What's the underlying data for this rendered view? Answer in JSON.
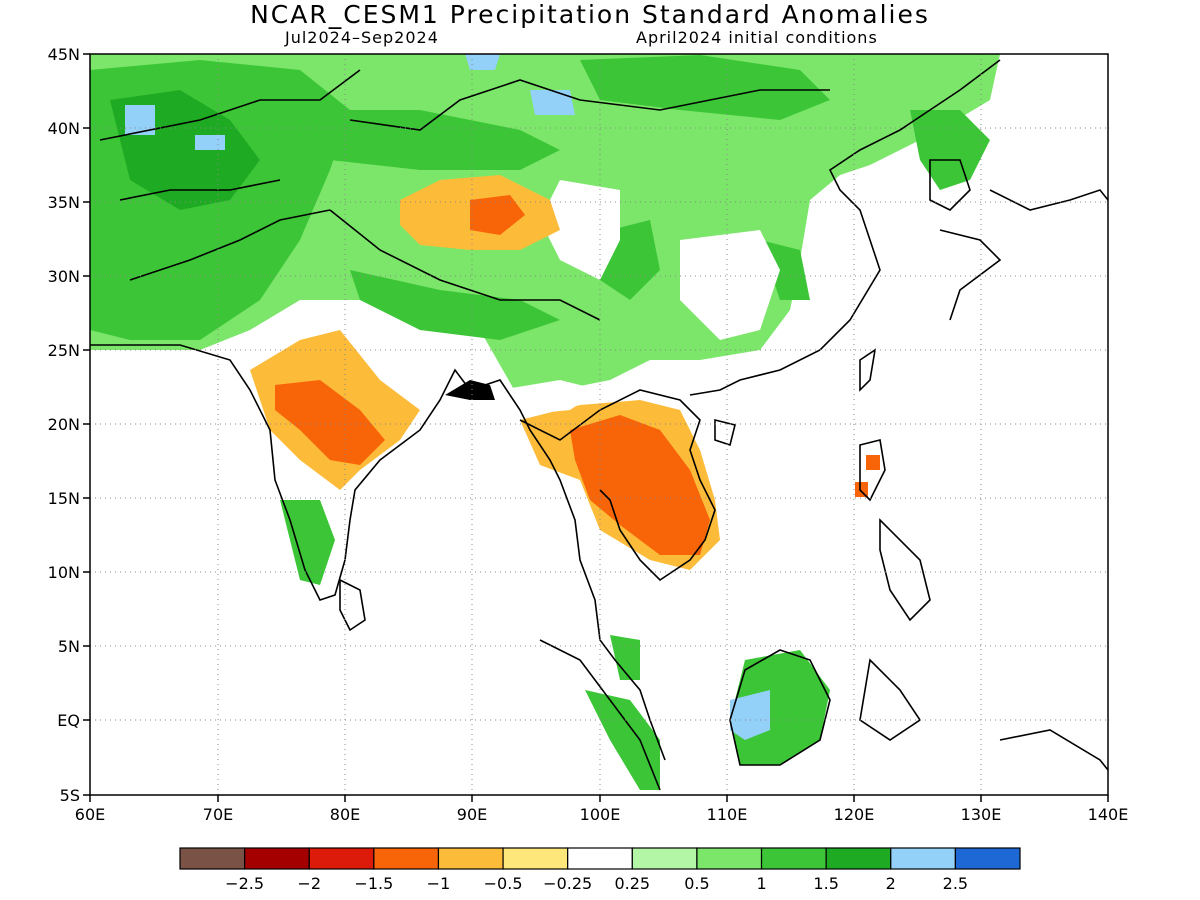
{
  "title": "NCAR_CESM1 Precipitation Standard Anomalies",
  "subtitle_period": "Jul2024–Sep2024",
  "subtitle_init": "April2024 initial conditions",
  "lon_labels": [
    "60E",
    "70E",
    "80E",
    "90E",
    "100E",
    "110E",
    "120E",
    "130E",
    "140E"
  ],
  "lat_labels": [
    "45N",
    "40N",
    "35N",
    "30N",
    "25N",
    "20N",
    "15N",
    "10N",
    "5N",
    "EQ",
    "5S"
  ],
  "colorbar": {
    "colors": [
      "#7a5246",
      "#a40000",
      "#dd1b0b",
      "#f86408",
      "#fdbb3a",
      "#fee77a",
      "#ffffff",
      "#b3f7a6",
      "#7be66a",
      "#3cc637",
      "#1faa23",
      "#94d1f8",
      "#1d68d5"
    ],
    "labels": [
      "-2.5",
      "-2",
      "-1.5",
      "-1",
      "-0.5",
      "-0.25",
      "0.25",
      "0.5",
      "1",
      "1.5",
      "2",
      "2.5"
    ]
  }
}
